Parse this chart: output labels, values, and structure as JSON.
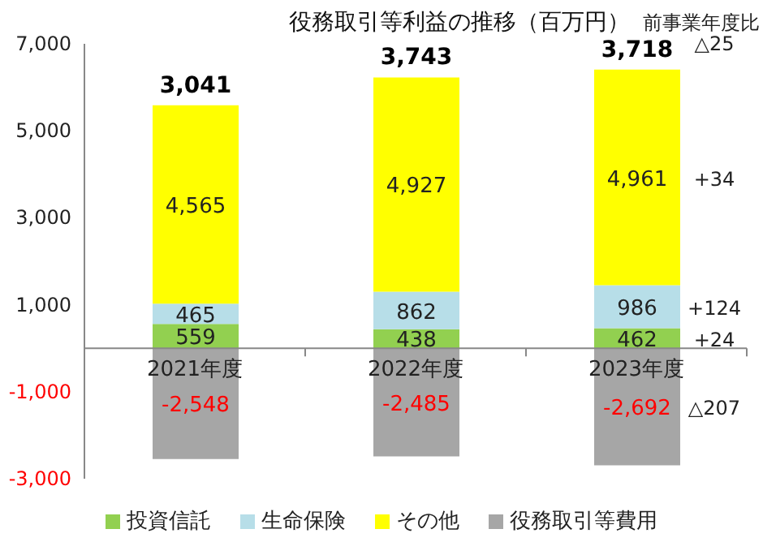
{
  "chart_data": {
    "type": "bar",
    "title": "役務取引等利益の推移（百万円）",
    "categories": [
      "2021年度",
      "2022年度",
      "2023年度"
    ],
    "series": [
      {
        "name": "投資信託",
        "color": "#92d050",
        "values": [
          559,
          438,
          462
        ],
        "value_labels": [
          "559",
          "438",
          "462"
        ]
      },
      {
        "name": "生命保険",
        "color": "#b7dee8",
        "values": [
          465,
          862,
          986
        ],
        "value_labels": [
          "465",
          "862",
          "986"
        ]
      },
      {
        "name": "その他",
        "color": "#ffff00",
        "values": [
          4565,
          4927,
          4961
        ],
        "value_labels": [
          "4,565",
          "4,927",
          "4,961"
        ]
      },
      {
        "name": "役務取引等費用",
        "color": "#a6a6a6",
        "values": [
          -2548,
          -2485,
          -2692
        ],
        "value_labels": [
          "-2,548",
          "-2,485",
          "-2,692"
        ]
      }
    ],
    "stacked": true,
    "totals": [
      "3,041",
      "3,743",
      "3,718"
    ],
    "ylim": [
      -3000,
      7000
    ],
    "yticks": [
      {
        "value": -3000,
        "label": "-3,000"
      },
      {
        "value": -1000,
        "label": "-1,000"
      },
      {
        "value": 1000,
        "label": "1,000"
      },
      {
        "value": 3000,
        "label": "3,000"
      },
      {
        "value": 5000,
        "label": "5,000"
      },
      {
        "value": 7000,
        "label": "7,000"
      }
    ],
    "grid": false,
    "legend": "bottom",
    "annotations": [
      "前事業年度比",
      "△25",
      "+34",
      "+124",
      "+24",
      "△207"
    ]
  }
}
